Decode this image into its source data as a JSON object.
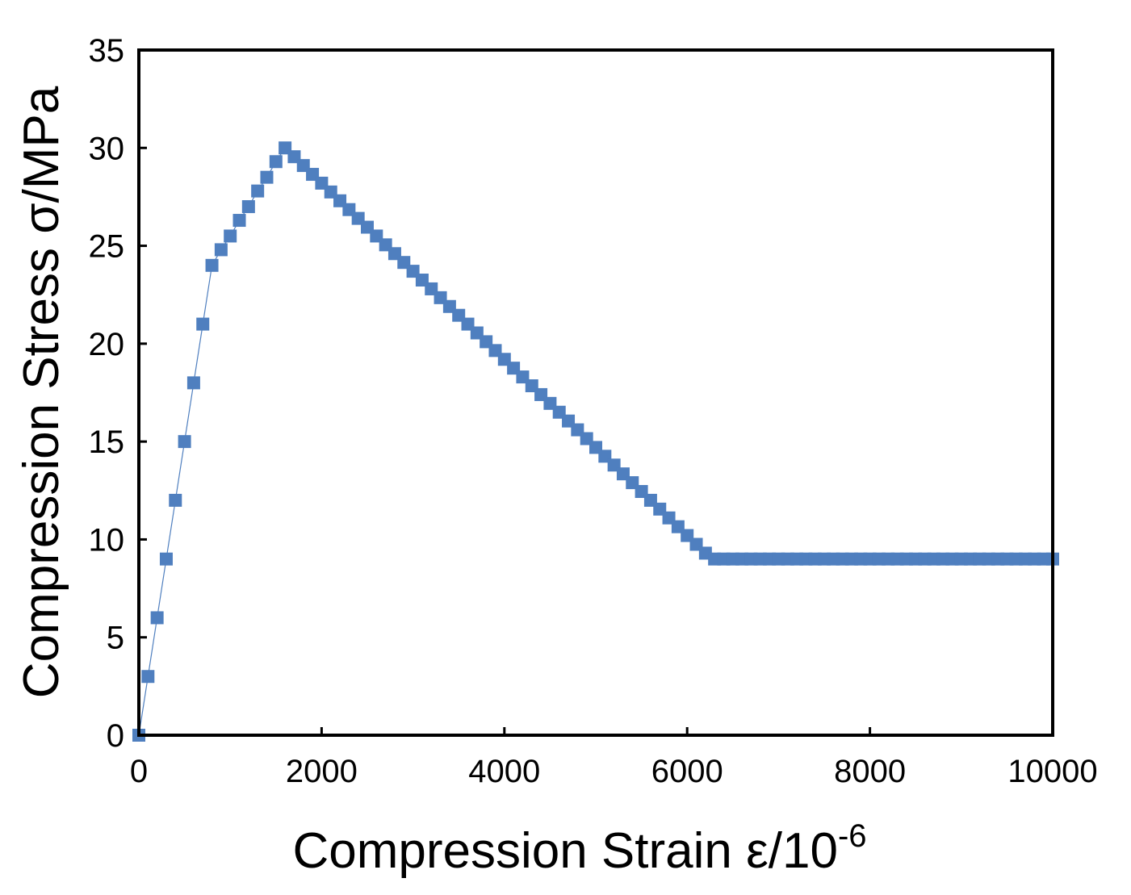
{
  "chart_data": {
    "type": "scatter",
    "title": "",
    "xlabel": "Compression Strain ε/10",
    "xlabel_superscript": "-6",
    "ylabel": "Compression Stress σ/MPa",
    "xlim": [
      0,
      10000
    ],
    "ylim": [
      0,
      35
    ],
    "xticks": [
      0,
      2000,
      4000,
      6000,
      8000,
      10000
    ],
    "yticks": [
      0,
      5,
      10,
      15,
      20,
      25,
      30,
      35
    ],
    "grid": false,
    "legend": "none",
    "marker": "square",
    "connected_by_thin_line": true,
    "series": [
      {
        "color": "#4f7fbf",
        "x": [
          0,
          100,
          200,
          300,
          400,
          500,
          600,
          700,
          800,
          900,
          1000,
          1100,
          1200,
          1300,
          1400,
          1500,
          1600,
          1700,
          1800,
          1900,
          2000,
          2100,
          2200,
          2300,
          2400,
          2500,
          2600,
          2700,
          2800,
          2900,
          3000,
          3100,
          3200,
          3300,
          3400,
          3500,
          3600,
          3700,
          3800,
          3900,
          4000,
          4100,
          4200,
          4300,
          4400,
          4500,
          4600,
          4700,
          4800,
          4900,
          5000,
          5100,
          5200,
          5300,
          5400,
          5500,
          5600,
          5700,
          5800,
          5900,
          6000,
          6100,
          6200,
          6300,
          6400,
          6500,
          6600,
          6700,
          6800,
          6900,
          7000,
          7100,
          7200,
          7300,
          7400,
          7500,
          7600,
          7700,
          7800,
          7900,
          8000,
          8100,
          8200,
          8300,
          8400,
          8500,
          8600,
          8700,
          8800,
          8900,
          9000,
          9100,
          9200,
          9300,
          9400,
          9500,
          9600,
          9700,
          9800,
          9900,
          10000
        ],
        "y": [
          0,
          3,
          6,
          9,
          12,
          15,
          18,
          21,
          24,
          24.8,
          25.5,
          26.3,
          27,
          27.8,
          28.5,
          29.3,
          30,
          29.55,
          29.1,
          28.65,
          28.2,
          27.75,
          27.3,
          26.85,
          26.4,
          25.95,
          25.5,
          25.05,
          24.6,
          24.15,
          23.7,
          23.25,
          22.8,
          22.35,
          21.9,
          21.45,
          21,
          20.55,
          20.1,
          19.65,
          19.2,
          18.75,
          18.3,
          17.85,
          17.4,
          16.95,
          16.5,
          16.05,
          15.6,
          15.15,
          14.7,
          14.25,
          13.8,
          13.35,
          12.9,
          12.45,
          12,
          11.55,
          11.1,
          10.65,
          10.2,
          9.75,
          9.3,
          9,
          9,
          9,
          9,
          9,
          9,
          9,
          9,
          9,
          9,
          9,
          9,
          9,
          9,
          9,
          9,
          9,
          9,
          9,
          9,
          9,
          9,
          9,
          9,
          9,
          9,
          9,
          9,
          9,
          9,
          9,
          9,
          9,
          9,
          9,
          9,
          9,
          9
        ]
      }
    ]
  }
}
